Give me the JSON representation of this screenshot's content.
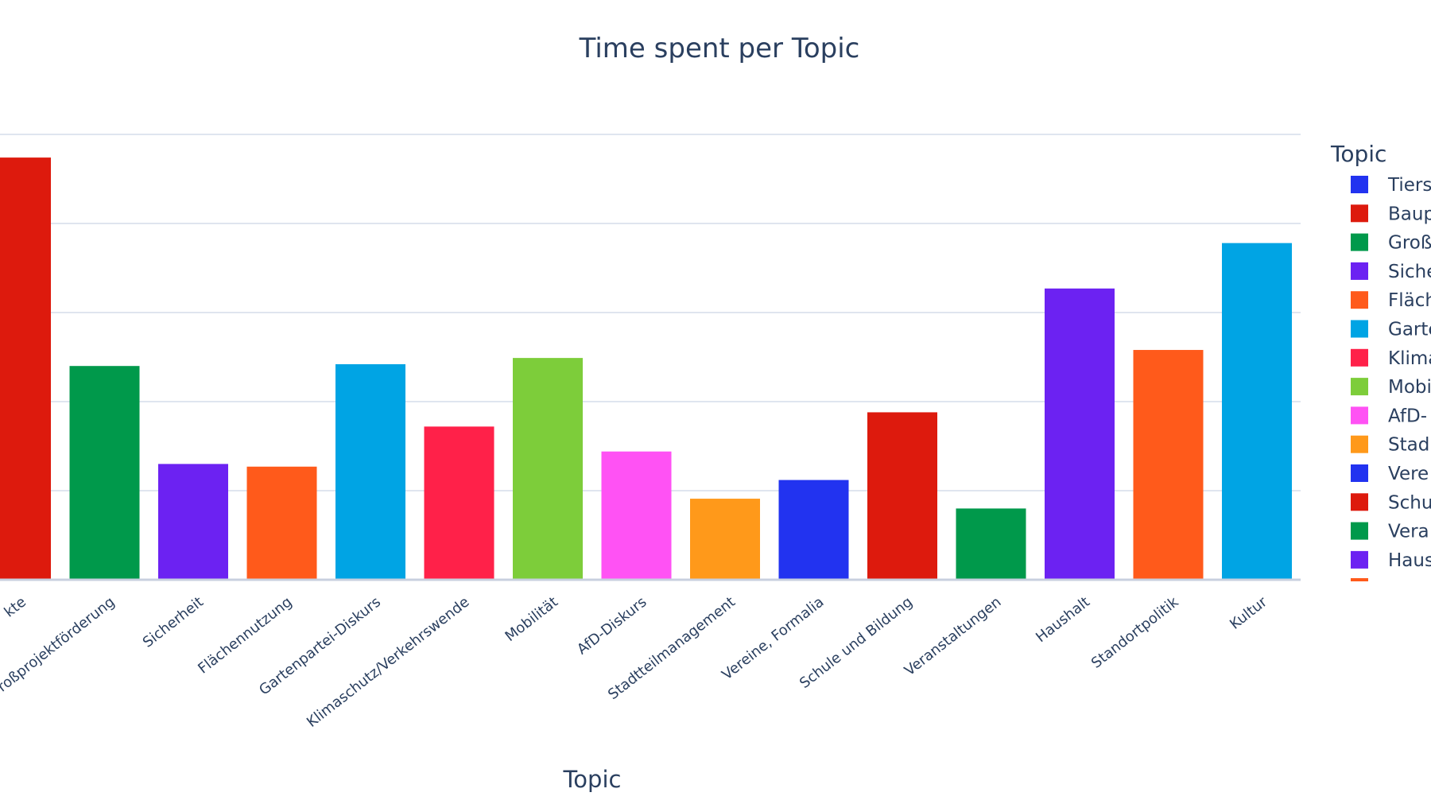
{
  "chart_data": {
    "type": "bar",
    "title": "Time spent per Topic",
    "xlabel": "Topic",
    "ylabel": "",
    "ylim": [
      0,
      6
    ],
    "grid": true,
    "legend": {
      "title": "Topic",
      "placement": "right"
    },
    "categories": [
      "Bauprojekte",
      "Großprojektförderung",
      "Sicherheit",
      "Flächennutzung",
      "Gartenpartei-Diskurs",
      "Klimaschutz/Verkehrswende",
      "Mobilität",
      "AfD-Diskurs",
      "Stadtteilmanagement",
      "Vereine, Formalia",
      "Schule und Bildung",
      "Veranstaltungen",
      "Haushalt",
      "Standortpolitik",
      "Kultur"
    ],
    "tick_labels": [
      "kte",
      "roßprojektförderung",
      "Sicherheit",
      "Flächennutzung",
      "Gartenpartei-Diskurs",
      "Klimaschutz/Verkehrswende",
      "Mobilität",
      "AfD-Diskurs",
      "Stadtteilmanagement",
      "Vereine, Formalia",
      "Schule und Bildung",
      "Veranstaltungen",
      "Haushalt",
      "Standortpolitik",
      "Kultur"
    ],
    "values": [
      4.74,
      2.4,
      1.3,
      1.27,
      2.42,
      1.72,
      2.49,
      1.44,
      0.91,
      1.12,
      1.88,
      0.8,
      3.27,
      2.58,
      3.78
    ],
    "colors": [
      "#dd1a0d",
      "#00994b",
      "#6c22f2",
      "#ff5a1b",
      "#00a4e4",
      "#ff2149",
      "#7dcd3a",
      "#ff52f4",
      "#ff991a",
      "#2233f0",
      "#dd1a0d",
      "#00994b",
      "#6c22f2",
      "#ff5a1b",
      "#00a4e4"
    ],
    "legend_entries": [
      {
        "label": "Tiers",
        "color": "#2233f0"
      },
      {
        "label": "Baup",
        "color": "#dd1a0d"
      },
      {
        "label": "Groß",
        "color": "#00994b"
      },
      {
        "label": "Siche",
        "color": "#6c22f2"
      },
      {
        "label": "Fläch",
        "color": "#ff5a1b"
      },
      {
        "label": "Garte",
        "color": "#00a4e4"
      },
      {
        "label": "Klima",
        "color": "#ff2149"
      },
      {
        "label": "Mobi",
        "color": "#7dcd3a"
      },
      {
        "label": "AfD-",
        "color": "#ff52f4"
      },
      {
        "label": "Stad",
        "color": "#ff991a"
      },
      {
        "label": "Vere",
        "color": "#2233f0"
      },
      {
        "label": "Schu",
        "color": "#dd1a0d"
      },
      {
        "label": "Vera",
        "color": "#00994b"
      },
      {
        "label": "Haus",
        "color": "#6c22f2"
      }
    ],
    "legend_partial_color": "#ff5a1b"
  }
}
